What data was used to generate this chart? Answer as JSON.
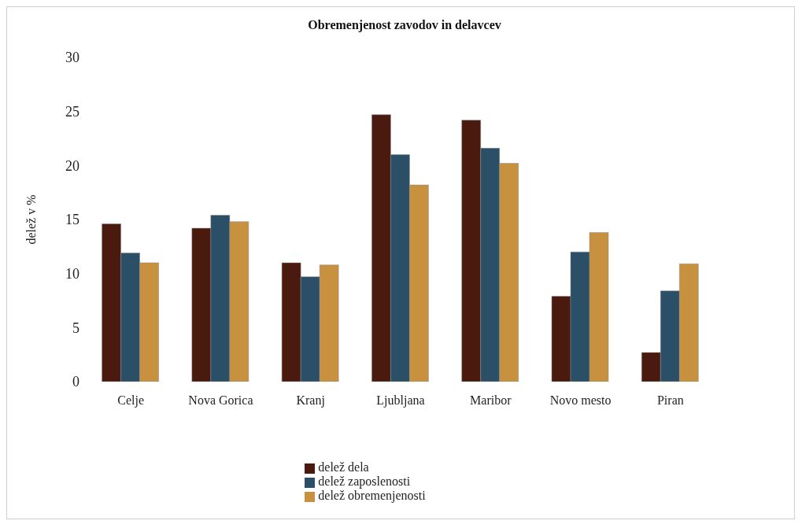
{
  "chart_data": {
    "type": "bar",
    "title": "Obremenjenost zavodov in delavcev",
    "ylabel": "delež v %",
    "categories": [
      "Celje",
      "Nova Gorica",
      "Kranj",
      "Ljubljana",
      "Maribor",
      "Novo mesto",
      "Piran"
    ],
    "series": [
      {
        "name": "delež dela",
        "color": "#4a1a0e",
        "values": [
          14.6,
          14.2,
          11.0,
          24.7,
          24.2,
          7.9,
          2.7
        ]
      },
      {
        "name": "delež zaposlenosti",
        "color": "#2a4f66",
        "values": [
          11.9,
          15.4,
          9.7,
          21.0,
          21.6,
          12.0,
          8.4
        ]
      },
      {
        "name": "delež obremenjenosti",
        "color": "#c8913f",
        "values": [
          11.0,
          14.8,
          10.8,
          18.2,
          20.2,
          13.8,
          10.9
        ]
      }
    ],
    "ylim": [
      0,
      30
    ],
    "yticks": [
      0,
      5,
      10,
      15,
      20,
      25,
      30
    ],
    "grid": false,
    "legend": "bottom"
  }
}
